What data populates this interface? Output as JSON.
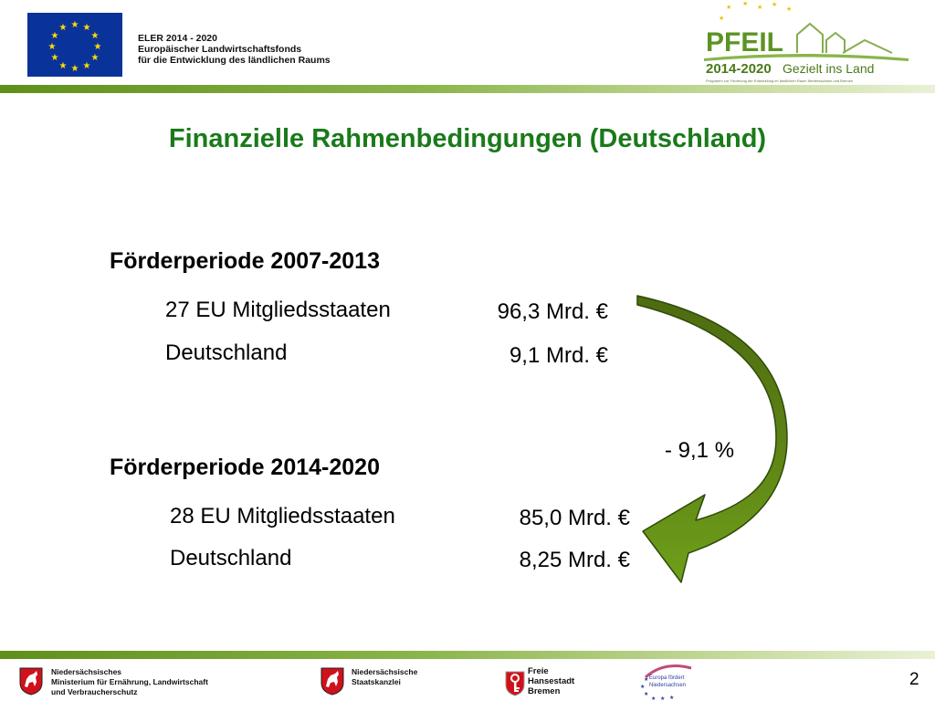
{
  "header": {
    "program_line_1": "ELER 2014 - 2020",
    "program_line_2": "Europäischer Landwirtschaftsfonds",
    "program_line_3": "für die Entwicklung des ländlichen Raums",
    "logo_word": "PFEIL",
    "logo_years": "2014-2020",
    "logo_tagline": "Gezielt ins Land",
    "logo_small": "Programm zur Förderung der Entwicklung im ländlichen Raum Niedersachsen und Bremen"
  },
  "slide": {
    "title": "Finanzielle Rahmenbedingungen (Deutschland)",
    "periods": [
      {
        "title": "Förderperiode 2007-2013",
        "rows": [
          {
            "label": "27 EU Mitgliedsstaaten",
            "value": "96,3 Mrd. €"
          },
          {
            "label": "Deutschland",
            "value": "9,1 Mrd. €"
          }
        ]
      },
      {
        "title": "Förderperiode 2014-2020",
        "rows": [
          {
            "label": "28 EU Mitgliedsstaaten",
            "value": "85,0 Mrd. €"
          },
          {
            "label": "Deutschland",
            "value": "8,25 Mrd. €"
          }
        ]
      }
    ],
    "change": "- 9,1 %"
  },
  "footer": {
    "org1_line1": "Niedersächsisches",
    "org1_line2": "Ministerium für Ernährung, Landwirtschaft",
    "org1_line3": "und Verbraucherschutz",
    "org2_line1": "Niedersächsische",
    "org2_line2": "Staatskanzlei",
    "org3_line1": "Freie",
    "org3_line2": "Hansestadt",
    "org3_line3": "Bremen",
    "europa_line1": "Europa fördert",
    "europa_line2": "Niedersachsen",
    "page_number": "2"
  },
  "colors": {
    "title": "#1a7a1a",
    "band": "#7aa83a",
    "arrow_dark": "#4d6b10",
    "arrow_light": "#6f9f1a",
    "eu_blue": "#0a3399",
    "eu_star": "#ffdd00"
  },
  "icons": [
    "eu-flag-icon",
    "pfeil-logo-icon",
    "curved-arrow-icon",
    "lower-saxony-horse-icon",
    "bremen-key-icon",
    "europa-stars-icon"
  ]
}
